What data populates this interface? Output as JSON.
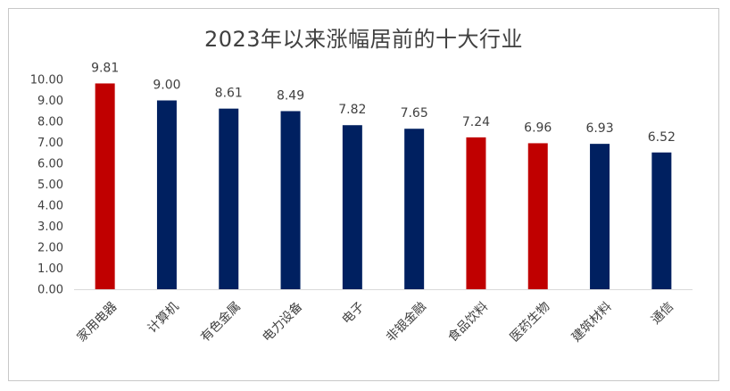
{
  "chart_data": {
    "type": "bar",
    "title": "2023年以来涨幅居前的十大行业",
    "categories": [
      "家用电器",
      "计算机",
      "有色金属",
      "电力设备",
      "电子",
      "非银金融",
      "食品饮料",
      "医药生物",
      "建筑材料",
      "通信"
    ],
    "values": [
      9.81,
      9.0,
      8.61,
      8.49,
      7.82,
      7.65,
      7.24,
      6.96,
      6.93,
      6.52
    ],
    "value_labels": [
      "9.81",
      "9.00",
      "8.61",
      "8.49",
      "7.82",
      "7.65",
      "7.24",
      "6.96",
      "6.93",
      "6.52"
    ],
    "bar_colors": [
      "#c00000",
      "#002060",
      "#002060",
      "#002060",
      "#002060",
      "#002060",
      "#c00000",
      "#c00000",
      "#002060",
      "#002060"
    ],
    "ylim": [
      0,
      10
    ],
    "yticks": [
      "0.00",
      "1.00",
      "2.00",
      "3.00",
      "4.00",
      "5.00",
      "6.00",
      "7.00",
      "8.00",
      "9.00",
      "10.00"
    ],
    "grid": false,
    "xlabel": "",
    "ylabel": ""
  }
}
